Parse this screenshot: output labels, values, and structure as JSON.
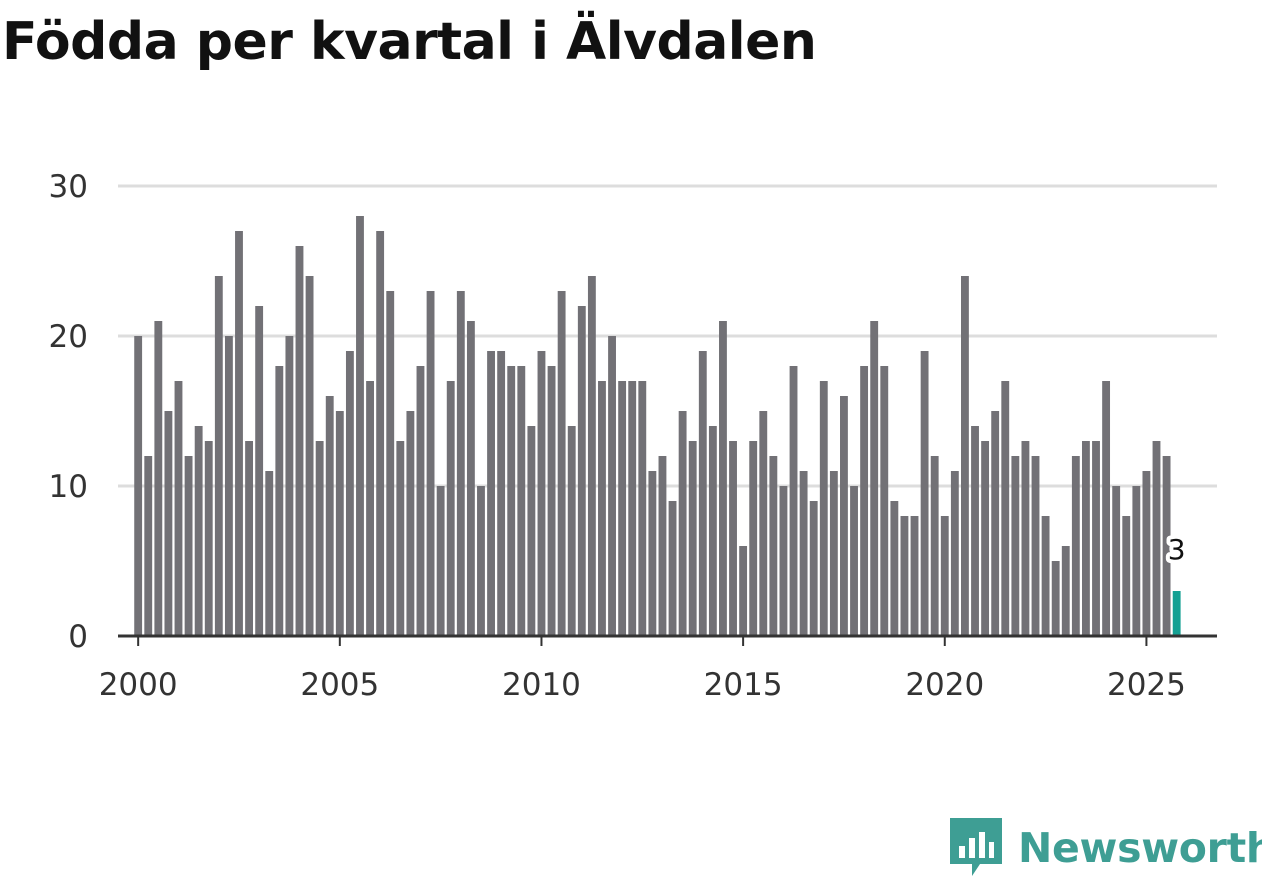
{
  "title": "Födda per kvartal i Älvdalen",
  "brand": {
    "name": "Newsworthy",
    "color": "#3e9e94",
    "icon": "newsworthy-logo-icon"
  },
  "colors": {
    "bar": "#727176",
    "highlight": "#14a093",
    "grid": "#dddddd",
    "axis": "#333333"
  },
  "chart_data": {
    "type": "bar",
    "title": "Födda per kvartal i Älvdalen",
    "xlabel": "",
    "ylabel": "",
    "ylim": [
      0,
      30
    ],
    "yticks": [
      0,
      10,
      20,
      30
    ],
    "xticks": [
      "2000",
      "2005",
      "2010",
      "2015",
      "2020",
      "2025"
    ],
    "first_period": "2000 Q1",
    "x_start_year": 2000,
    "periods_per_year": 4,
    "grid": true,
    "values": [
      20,
      12,
      21,
      15,
      17,
      12,
      14,
      13,
      24,
      20,
      27,
      13,
      22,
      11,
      18,
      20,
      26,
      24,
      13,
      16,
      15,
      19,
      28,
      17,
      27,
      23,
      13,
      15,
      18,
      23,
      10,
      17,
      23,
      21,
      10,
      19,
      19,
      18,
      18,
      14,
      19,
      18,
      23,
      14,
      22,
      24,
      17,
      20,
      17,
      17,
      17,
      11,
      12,
      9,
      15,
      13,
      19,
      14,
      21,
      13,
      6,
      13,
      15,
      12,
      10,
      18,
      11,
      9,
      17,
      11,
      16,
      10,
      18,
      21,
      18,
      9,
      8,
      8,
      19,
      12,
      8,
      11,
      24,
      14,
      13,
      15,
      17,
      12,
      13,
      12,
      8,
      5,
      6,
      12,
      13,
      13,
      17,
      10,
      8,
      10,
      11,
      13,
      12,
      3
    ],
    "highlight_last": true,
    "annotation": {
      "label": "3"
    }
  }
}
